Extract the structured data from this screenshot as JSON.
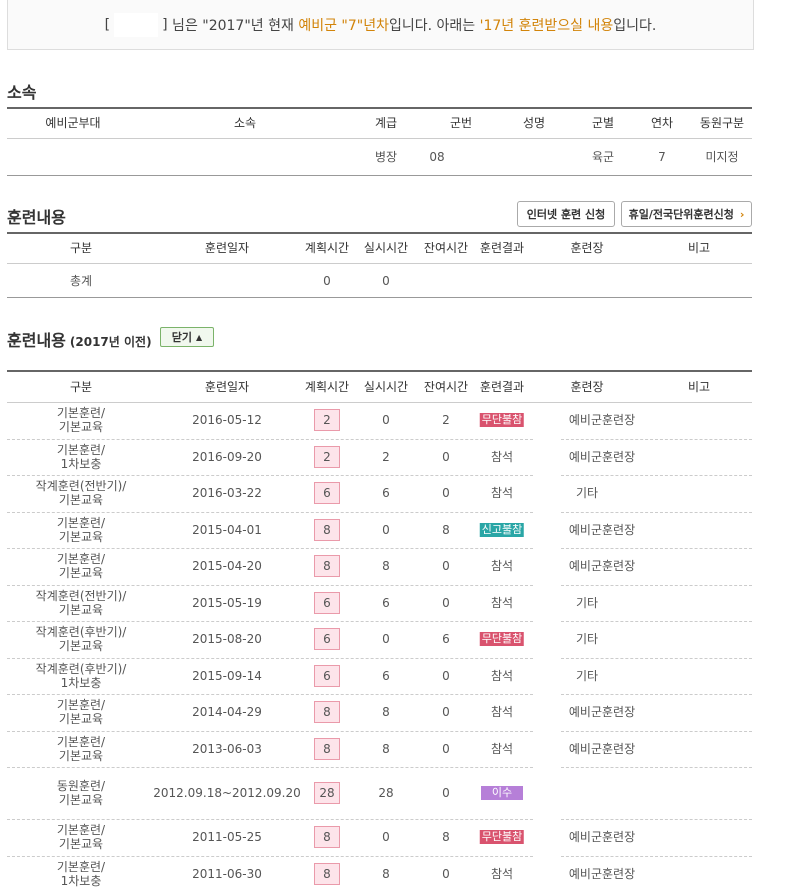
{
  "notice": {
    "open": "[",
    "close": "]",
    "parts": [
      {
        "text": " 님은 \"2017\"년 현재 "
      },
      {
        "text": "예비군 \"7\"년차",
        "highlight": true
      },
      {
        "text": "입니다. 아래는 "
      },
      {
        "text": "'17년 훈련받으실 내용",
        "highlight": true
      },
      {
        "text": "입니다."
      }
    ]
  },
  "affiliation": {
    "title": "소속",
    "headers": [
      "예비군부대",
      "소속",
      "계급",
      "군번",
      "성명",
      "군별",
      "연차",
      "동원구분"
    ],
    "row": [
      null,
      null,
      "병장",
      "08",
      null,
      "육군",
      7,
      "미지정"
    ]
  },
  "training": {
    "title": "훈련내용",
    "buttons": [
      "인터넷 훈련 신청",
      "휴일/전국단위훈련신청"
    ],
    "headers": [
      "구분",
      "훈련일자",
      "계획시간",
      "실시시간",
      "잔여시간",
      "훈련결과",
      "훈련장",
      "비고"
    ],
    "total": [
      "총계",
      null,
      0,
      0,
      null,
      null,
      null,
      null
    ]
  },
  "history": {
    "title": "훈련내용",
    "subtitle": "(2017년 이전)",
    "toggle": "닫기",
    "headers": [
      "구분",
      "훈련일자",
      "계획시간",
      "실시시간",
      "잔여시간",
      "훈련결과",
      "훈련장",
      "비고"
    ],
    "rows": [
      {
        "category": [
          "기본훈련/",
          "기본교육"
        ],
        "date": "2016-05-12",
        "planned": 2,
        "actual": 0,
        "remaining": 2,
        "result": "무단불참",
        "badge": "red",
        "place": "예비군훈련장"
      },
      {
        "category": [
          "기본훈련/",
          "1차보충"
        ],
        "date": "2016-09-20",
        "planned": 2,
        "actual": 2,
        "remaining": 0,
        "result": "참석",
        "place": "예비군훈련장"
      },
      {
        "category": [
          "작계훈련(전반기)/",
          "기본교육"
        ],
        "date": "2016-03-22",
        "planned": 6,
        "actual": 6,
        "remaining": 0,
        "result": "참석",
        "place": "기타"
      },
      {
        "category": [
          "기본훈련/",
          "기본교육"
        ],
        "date": "2015-04-01",
        "planned": 8,
        "actual": 0,
        "remaining": 8,
        "result": "신고불참",
        "badge": "teal",
        "place": "예비군훈련장"
      },
      {
        "category": [
          "기본훈련/",
          "기본교육"
        ],
        "date": "2015-04-20",
        "planned": 8,
        "actual": 8,
        "remaining": 0,
        "result": "참석",
        "place": "예비군훈련장"
      },
      {
        "category": [
          "작계훈련(전반기)/",
          "기본교육"
        ],
        "date": "2015-05-19",
        "planned": 6,
        "actual": 6,
        "remaining": 0,
        "result": "참석",
        "place": "기타"
      },
      {
        "category": [
          "작계훈련(후반기)/",
          "기본교육"
        ],
        "date": "2015-08-20",
        "planned": 6,
        "actual": 0,
        "remaining": 6,
        "result": "무단불참",
        "badge": "red",
        "place": "기타"
      },
      {
        "category": [
          "작계훈련(후반기)/",
          "1차보충"
        ],
        "date": "2015-09-14",
        "planned": 6,
        "actual": 6,
        "remaining": 0,
        "result": "참석",
        "place": "기타"
      },
      {
        "category": [
          "기본훈련/",
          "기본교육"
        ],
        "date": "2014-04-29",
        "planned": 8,
        "actual": 8,
        "remaining": 0,
        "result": "참석",
        "place": "예비군훈련장"
      },
      {
        "category": [
          "기본훈련/",
          "기본교육"
        ],
        "date": "2013-06-03",
        "planned": 8,
        "actual": 8,
        "remaining": 0,
        "result": "참석",
        "place": "예비군훈련장"
      },
      {
        "category": [
          "동원훈련/",
          "기본교육"
        ],
        "date": "2012.09.18~2012.09.20",
        "planned": 28,
        "actual": 28,
        "remaining": 0,
        "result": "이수",
        "badge": "purple",
        "place": null
      },
      {
        "category": [
          "기본훈련/",
          "기본교육"
        ],
        "date": "2011-05-25",
        "planned": 8,
        "actual": 0,
        "remaining": 8,
        "result": "무단불참",
        "badge": "red",
        "place": "예비군훈련장"
      },
      {
        "category": [
          "기본훈련/",
          "1차보충"
        ],
        "date": "2011-06-30",
        "planned": 8,
        "actual": 8,
        "remaining": 0,
        "result": "참석",
        "place": "예비군훈련장"
      }
    ]
  }
}
